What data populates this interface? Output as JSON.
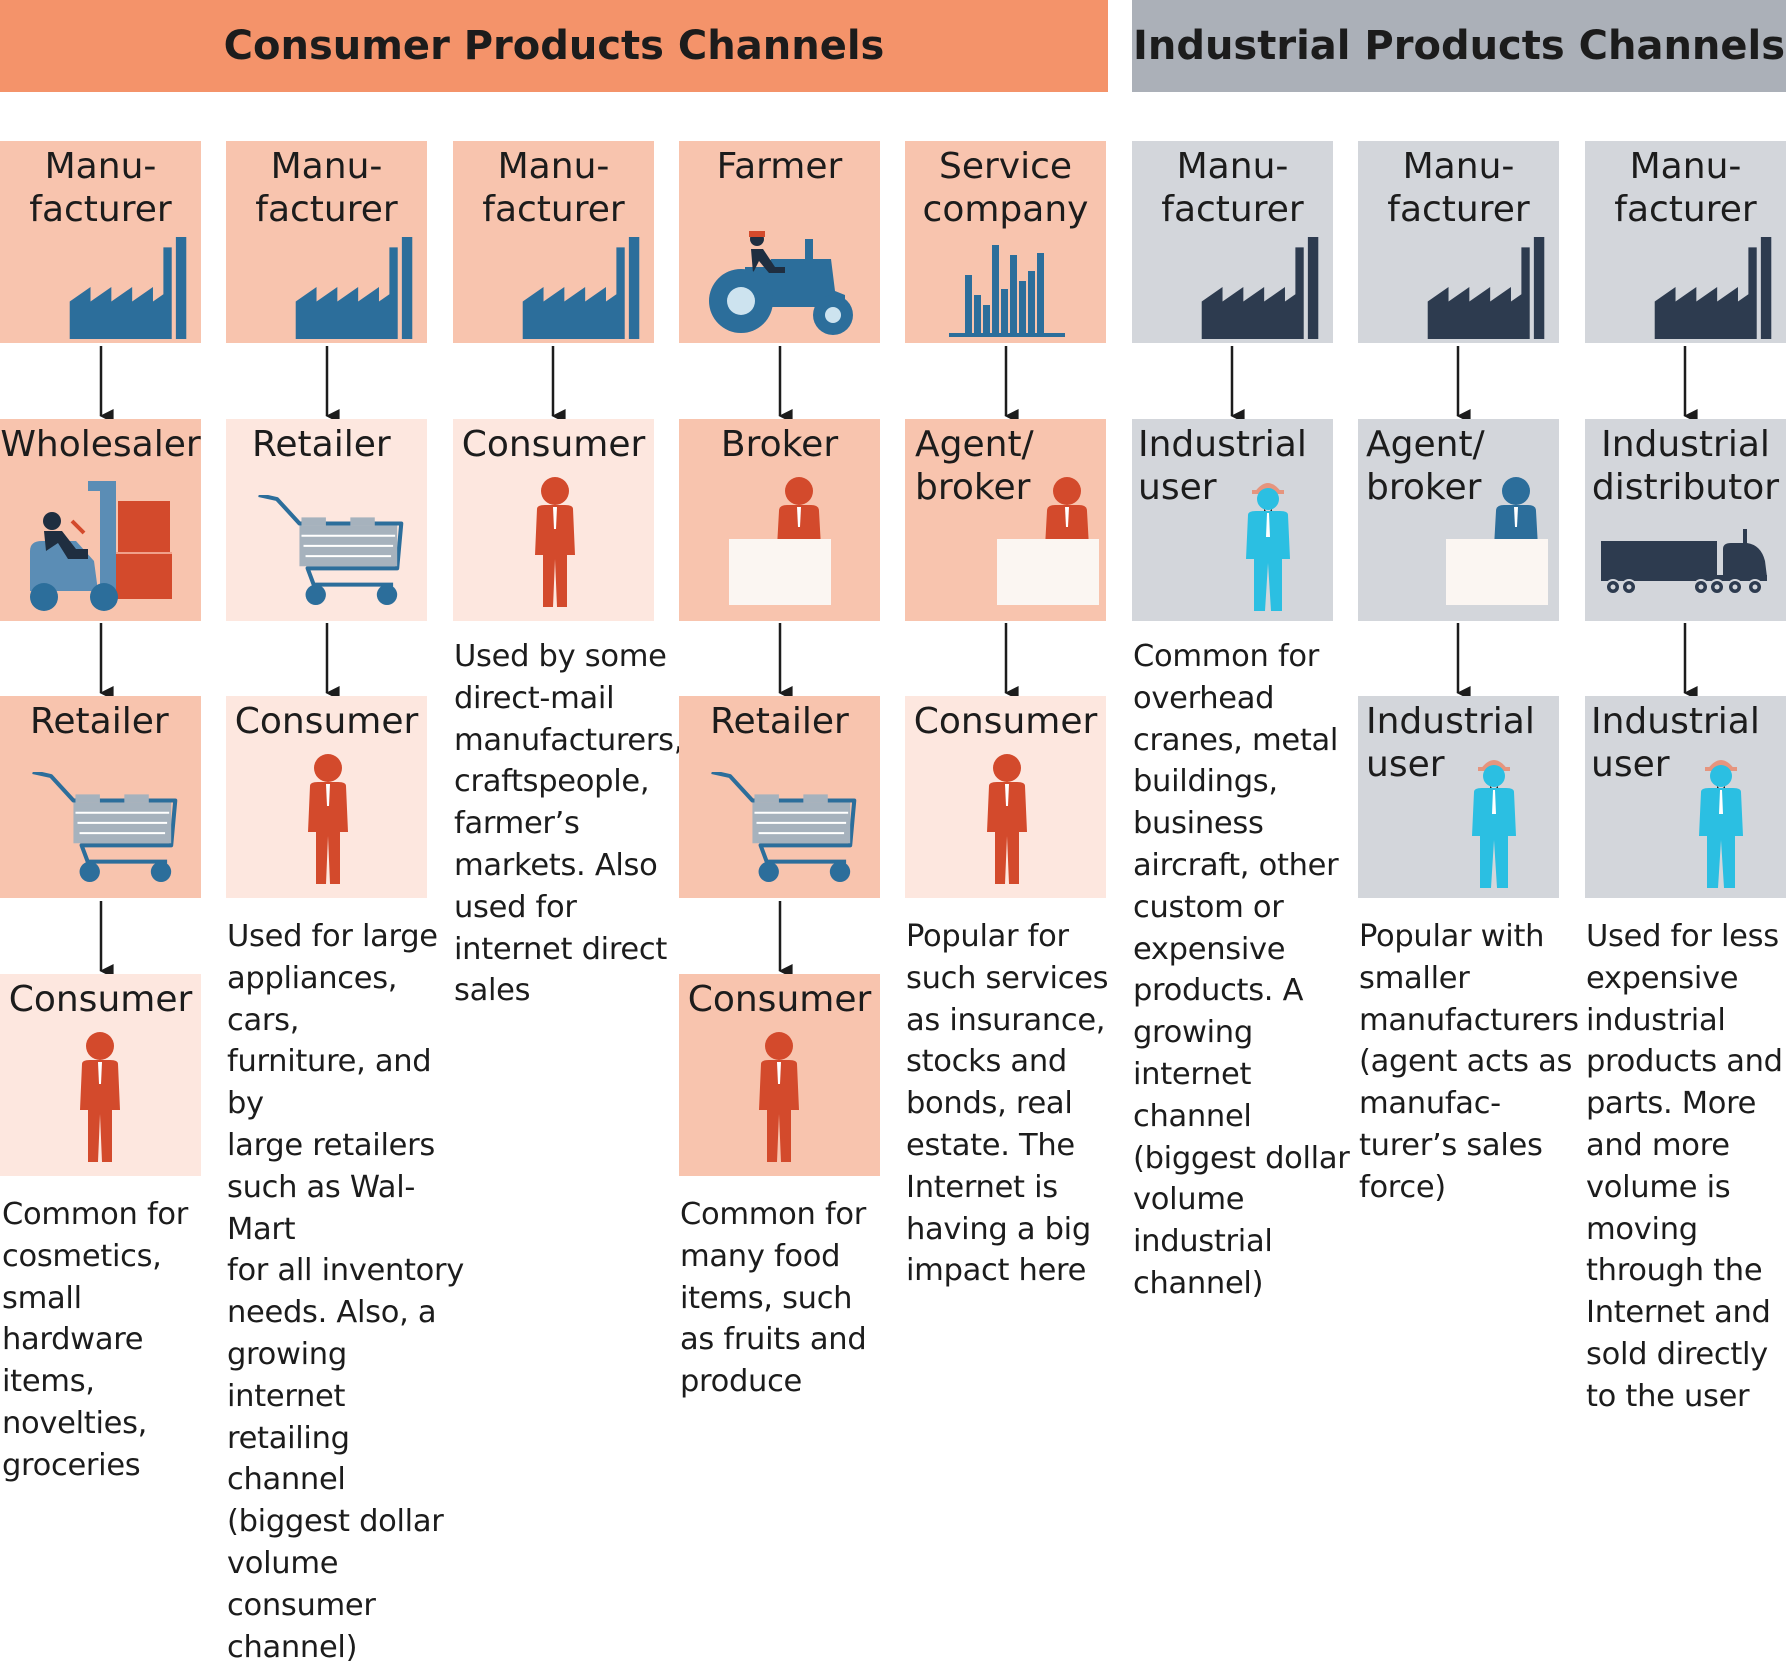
{
  "colors": {
    "consumer_banner": "#f4936a",
    "industrial_banner": "#abb0b8",
    "salmon_fill": "#f8c4ae",
    "salmon_light": "#fde7df",
    "gray_fill": "#d3d6db",
    "blue_icon": "#2c6e9b",
    "red_person": "#d34a2c",
    "cyan_person": "#2bbfe2",
    "dark_navy": "#2d3b4f"
  },
  "banners": {
    "consumer": "Consumer Products Channels",
    "industrial": "Industrial Products Channels"
  },
  "channels": [
    {
      "steps": [
        {
          "label": "Manu-\nfacturer",
          "icon": "factory-icon"
        },
        {
          "label": "Wholesaler",
          "icon": "forklift-icon"
        },
        {
          "label": "Retailer",
          "icon": "shopping-cart-icon"
        },
        {
          "label": "Consumer",
          "icon": "person-icon"
        }
      ],
      "note": "Common for\ncosmetics,\nsmall\nhardware\nitems,\nnovelties,\ngroceries"
    },
    {
      "steps": [
        {
          "label": "Manu-\nfacturer",
          "icon": "factory-icon"
        },
        {
          "label": "Retailer",
          "icon": "shopping-cart-icon"
        },
        {
          "label": "Consumer",
          "icon": "person-icon"
        }
      ],
      "note": "Used for large\nappliances,\ncars,\nfurniture, and by\nlarge retailers\nsuch as Wal-Mart\nfor all inventory\nneeds. Also, a\ngrowing internet\nretailing channel\n(biggest dollar\nvolume\nconsumer\nchannel)"
    },
    {
      "steps": [
        {
          "label": "Manu-\nfacturer",
          "icon": "factory-icon"
        },
        {
          "label": "Consumer",
          "icon": "person-icon"
        }
      ],
      "note": "Used by some\ndirect-mail\nmanufacturers,\ncraftspeople,\nfarmer’s\nmarkets. Also\nused for\ninternet direct\nsales"
    },
    {
      "steps": [
        {
          "label": "Farmer",
          "icon": "tractor-icon"
        },
        {
          "label": "Broker",
          "icon": "broker-desk-icon"
        },
        {
          "label": "Retailer",
          "icon": "shopping-cart-icon"
        },
        {
          "label": "Consumer",
          "icon": "person-icon"
        }
      ],
      "note": "Common for\nmany food\nitems, such\nas fruits and\nproduce"
    },
    {
      "steps": [
        {
          "label": "Service\ncompany",
          "icon": "bar-chart-icon"
        },
        {
          "label": "Agent/\nbroker",
          "icon": "broker-desk-icon"
        },
        {
          "label": "Consumer",
          "icon": "person-icon"
        }
      ],
      "note": "Popular for\nsuch services\nas insurance,\nstocks and\nbonds, real\nestate. The\nInternet is\nhaving a big\nimpact here"
    },
    {
      "steps": [
        {
          "label": "Manu-\nfacturer",
          "icon": "factory-icon"
        },
        {
          "label": "Industrial\nuser",
          "icon": "hardhat-worker-icon"
        }
      ],
      "note": "Common for\noverhead\ncranes, metal\nbuildings,\nbusiness\naircraft, other\ncustom or\nexpensive\nproducts. A\ngrowing\ninternet\nchannel\n(biggest dollar\nvolume\nindustrial\nchannel)"
    },
    {
      "steps": [
        {
          "label": "Manu-\nfacturer",
          "icon": "factory-icon"
        },
        {
          "label": "Agent/\nbroker",
          "icon": "broker-desk-icon"
        },
        {
          "label": "Industrial\nuser",
          "icon": "hardhat-worker-icon"
        }
      ],
      "note": "Popular with\nsmaller\nmanufacturers\n(agent acts as\nmanufac-\nturer’s sales\nforce)"
    },
    {
      "steps": [
        {
          "label": "Manu-\nfacturer",
          "icon": "factory-icon"
        },
        {
          "label": "Industrial\ndistributor",
          "icon": "truck-icon"
        },
        {
          "label": "Industrial\nuser",
          "icon": "hardhat-worker-icon"
        }
      ],
      "note": "Used for less\nexpensive\nindustrial\nproducts and\nparts. More\nand more\nvolume is\nmoving\nthrough the\nInternet and\nsold directly\nto the user"
    }
  ]
}
